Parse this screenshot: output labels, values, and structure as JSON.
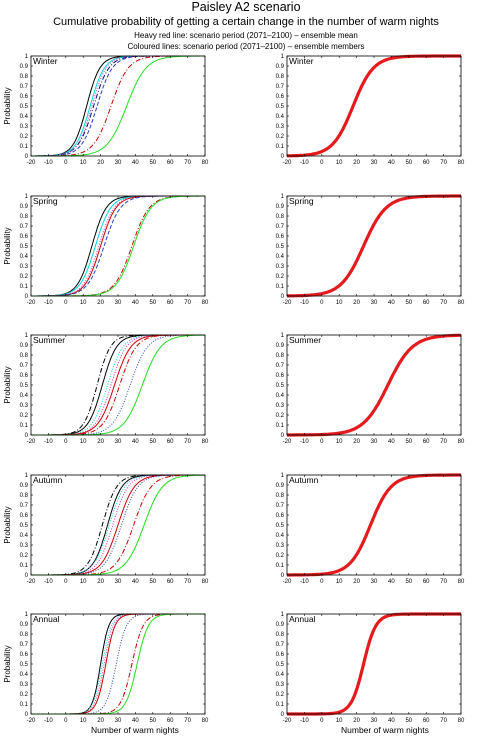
{
  "header": {
    "title": "Paisley A2 scenario",
    "subtitle": "Cumulative probability of getting a certain change in the number of warm nights",
    "note1": "Heavy red line: scenario period (2071–2100) – ensemble mean",
    "note2": "Coloured lines: scenario period (2071–2100) – ensemble members"
  },
  "colors": {
    "mean": "#e41a1c",
    "black": "#000000",
    "cyan": "#00d8d8",
    "green": "#22dd22",
    "red": "#cc0000",
    "blue": "#2244bb",
    "magenta": "#cc33cc",
    "navy": "#0b0b66"
  },
  "chart_data": [
    {
      "type": "line",
      "panel": "Winter-members",
      "label": "Winter",
      "xlabel": "",
      "ylabel": "Probability",
      "xlim": [
        -20,
        80
      ],
      "ylim": [
        0,
        1
      ],
      "xticks": [
        -20,
        -10,
        0,
        10,
        20,
        30,
        40,
        50,
        60,
        70,
        80
      ],
      "yticks": [
        0,
        0.1,
        0.2,
        0.3,
        0.4,
        0.5,
        0.6,
        0.7,
        0.8,
        0.9,
        1
      ],
      "series": [
        {
          "color": "black",
          "style": "solid",
          "mu": 12,
          "s": 6.5
        },
        {
          "color": "cyan",
          "style": "solid",
          "mu": 14,
          "s": 7
        },
        {
          "color": "navy",
          "style": "dashdot",
          "mu": 16,
          "s": 7.5
        },
        {
          "color": "blue",
          "style": "dashed",
          "mu": 18,
          "s": 7.5
        },
        {
          "color": "magenta",
          "style": "dotted",
          "mu": 15,
          "s": 7
        },
        {
          "color": "red",
          "style": "dashdot",
          "mu": 26,
          "s": 8.5
        },
        {
          "color": "green",
          "style": "solid",
          "mu": 35,
          "s": 9.5
        }
      ]
    },
    {
      "type": "line",
      "panel": "Winter-mean",
      "label": "Winter",
      "xlabel": "",
      "ylabel": "",
      "xlim": [
        -20,
        80
      ],
      "ylim": [
        0,
        1
      ],
      "xticks": [
        -20,
        -10,
        0,
        10,
        20,
        30,
        40,
        50,
        60,
        70,
        80
      ],
      "yticks": [
        0,
        0.1,
        0.2,
        0.3,
        0.4,
        0.5,
        0.6,
        0.7,
        0.8,
        0.9,
        1
      ],
      "series": [
        {
          "color": "mean",
          "style": "heavy",
          "mu": 18,
          "s": 10
        }
      ]
    },
    {
      "type": "line",
      "panel": "Spring-members",
      "label": "Spring",
      "xlabel": "",
      "ylabel": "Probability",
      "xlim": [
        -20,
        80
      ],
      "ylim": [
        0,
        1
      ],
      "xticks": [
        -20,
        -10,
        0,
        10,
        20,
        30,
        40,
        50,
        60,
        70,
        80
      ],
      "yticks": [
        0,
        0.1,
        0.2,
        0.3,
        0.4,
        0.5,
        0.6,
        0.7,
        0.8,
        0.9,
        1
      ],
      "series": [
        {
          "color": "black",
          "style": "solid",
          "mu": 15,
          "s": 7
        },
        {
          "color": "cyan",
          "style": "solid",
          "mu": 17,
          "s": 7.5
        },
        {
          "color": "magenta",
          "style": "dotted",
          "mu": 19,
          "s": 7.5
        },
        {
          "color": "red",
          "style": "solid",
          "mu": 20,
          "s": 7.5
        },
        {
          "color": "blue",
          "style": "dashed",
          "mu": 22,
          "s": 8
        },
        {
          "color": "red",
          "style": "dashdot",
          "mu": 38,
          "s": 8.5
        },
        {
          "color": "green",
          "style": "solid",
          "mu": 39,
          "s": 8.5
        }
      ]
    },
    {
      "type": "line",
      "panel": "Spring-mean",
      "label": "Spring",
      "xlabel": "",
      "ylabel": "",
      "xlim": [
        -20,
        80
      ],
      "ylim": [
        0,
        1
      ],
      "xticks": [
        -20,
        -10,
        0,
        10,
        20,
        30,
        40,
        50,
        60,
        70,
        80
      ],
      "yticks": [
        0,
        0.1,
        0.2,
        0.3,
        0.4,
        0.5,
        0.6,
        0.7,
        0.8,
        0.9,
        1
      ],
      "series": [
        {
          "color": "mean",
          "style": "heavy",
          "mu": 24,
          "s": 11
        }
      ]
    },
    {
      "type": "line",
      "panel": "Summer-members",
      "label": "Summer",
      "xlabel": "",
      "ylabel": "Probability",
      "xlim": [
        -20,
        80
      ],
      "ylim": [
        0,
        1
      ],
      "xticks": [
        -20,
        -10,
        0,
        10,
        20,
        30,
        40,
        50,
        60,
        70,
        80
      ],
      "yticks": [
        0,
        0.1,
        0.2,
        0.3,
        0.4,
        0.5,
        0.6,
        0.7,
        0.8,
        0.9,
        1
      ],
      "series": [
        {
          "color": "black",
          "style": "dashdot",
          "mu": 18,
          "s": 6.5
        },
        {
          "color": "black",
          "style": "solid",
          "mu": 21,
          "s": 7
        },
        {
          "color": "cyan",
          "style": "dotted",
          "mu": 24,
          "s": 7.5
        },
        {
          "color": "magenta",
          "style": "dotted",
          "mu": 26,
          "s": 7.5
        },
        {
          "color": "red",
          "style": "solid",
          "mu": 28,
          "s": 8
        },
        {
          "color": "red",
          "style": "dashdot",
          "mu": 31,
          "s": 8
        },
        {
          "color": "blue",
          "style": "dotted",
          "mu": 37,
          "s": 8.5
        },
        {
          "color": "green",
          "style": "solid",
          "mu": 44,
          "s": 9
        }
      ]
    },
    {
      "type": "line",
      "panel": "Summer-mean",
      "label": "Summer",
      "xlabel": "",
      "ylabel": "",
      "xlim": [
        -20,
        80
      ],
      "ylim": [
        0,
        1
      ],
      "xticks": [
        -20,
        -10,
        0,
        10,
        20,
        30,
        40,
        50,
        60,
        70,
        80
      ],
      "yticks": [
        0,
        0.1,
        0.2,
        0.3,
        0.4,
        0.5,
        0.6,
        0.7,
        0.8,
        0.9,
        1
      ],
      "series": [
        {
          "color": "mean",
          "style": "heavy",
          "mu": 38,
          "s": 12
        }
      ]
    },
    {
      "type": "line",
      "panel": "Autumn-members",
      "label": "Autumn",
      "xlabel": "",
      "ylabel": "Probability",
      "xlim": [
        -20,
        80
      ],
      "ylim": [
        0,
        1
      ],
      "xticks": [
        -20,
        -10,
        0,
        10,
        20,
        30,
        40,
        50,
        60,
        70,
        80
      ],
      "yticks": [
        0,
        0.1,
        0.2,
        0.3,
        0.4,
        0.5,
        0.6,
        0.7,
        0.8,
        0.9,
        1
      ],
      "series": [
        {
          "color": "black",
          "style": "dashdot",
          "mu": 21,
          "s": 7
        },
        {
          "color": "black",
          "style": "solid",
          "mu": 24,
          "s": 7
        },
        {
          "color": "cyan",
          "style": "dotted",
          "mu": 25,
          "s": 7.5
        },
        {
          "color": "magenta",
          "style": "dotted",
          "mu": 27,
          "s": 7.5
        },
        {
          "color": "red",
          "style": "solid",
          "mu": 30,
          "s": 8
        },
        {
          "color": "blue",
          "style": "dotted",
          "mu": 32,
          "s": 8
        },
        {
          "color": "red",
          "style": "dashdot",
          "mu": 39,
          "s": 8.5
        },
        {
          "color": "green",
          "style": "solid",
          "mu": 45,
          "s": 9
        }
      ]
    },
    {
      "type": "line",
      "panel": "Autumn-mean",
      "label": "Autumn",
      "xlabel": "",
      "ylabel": "",
      "xlim": [
        -20,
        80
      ],
      "ylim": [
        0,
        1
      ],
      "xticks": [
        -20,
        -10,
        0,
        10,
        20,
        30,
        40,
        50,
        60,
        70,
        80
      ],
      "yticks": [
        0,
        0.1,
        0.2,
        0.3,
        0.4,
        0.5,
        0.6,
        0.7,
        0.8,
        0.9,
        1
      ],
      "series": [
        {
          "color": "mean",
          "style": "heavy",
          "mu": 28,
          "s": 10
        }
      ]
    },
    {
      "type": "line",
      "panel": "Annual-members",
      "label": "Annual",
      "xlabel": "Number of warm nights",
      "ylabel": "Probability",
      "xlim": [
        -20,
        80
      ],
      "ylim": [
        0,
        1
      ],
      "xticks": [
        -20,
        -10,
        0,
        10,
        20,
        30,
        40,
        50,
        60,
        70,
        80
      ],
      "yticks": [
        0,
        0.1,
        0.2,
        0.3,
        0.4,
        0.5,
        0.6,
        0.7,
        0.8,
        0.9,
        1
      ],
      "series": [
        {
          "color": "black",
          "style": "solid",
          "mu": 20,
          "s": 4
        },
        {
          "color": "cyan",
          "style": "dotted",
          "mu": 21,
          "s": 4.5
        },
        {
          "color": "magenta",
          "style": "dotted",
          "mu": 22,
          "s": 4.5
        },
        {
          "color": "red",
          "style": "solid",
          "mu": 23,
          "s": 4.5
        },
        {
          "color": "blue",
          "style": "dotted",
          "mu": 29,
          "s": 5
        },
        {
          "color": "red",
          "style": "dashdot",
          "mu": 38,
          "s": 5.5
        },
        {
          "color": "green",
          "style": "solid",
          "mu": 41,
          "s": 5.5
        }
      ]
    },
    {
      "type": "line",
      "panel": "Annual-mean",
      "label": "Annual",
      "xlabel": "Number of warm nights",
      "ylabel": "",
      "xlim": [
        -20,
        80
      ],
      "ylim": [
        0,
        1
      ],
      "xticks": [
        -20,
        -10,
        0,
        10,
        20,
        30,
        40,
        50,
        60,
        70,
        80
      ],
      "yticks": [
        0,
        0.1,
        0.2,
        0.3,
        0.4,
        0.5,
        0.6,
        0.7,
        0.8,
        0.9,
        1
      ],
      "series": [
        {
          "color": "mean",
          "style": "heavy",
          "mu": 24,
          "s": 6
        }
      ]
    }
  ]
}
